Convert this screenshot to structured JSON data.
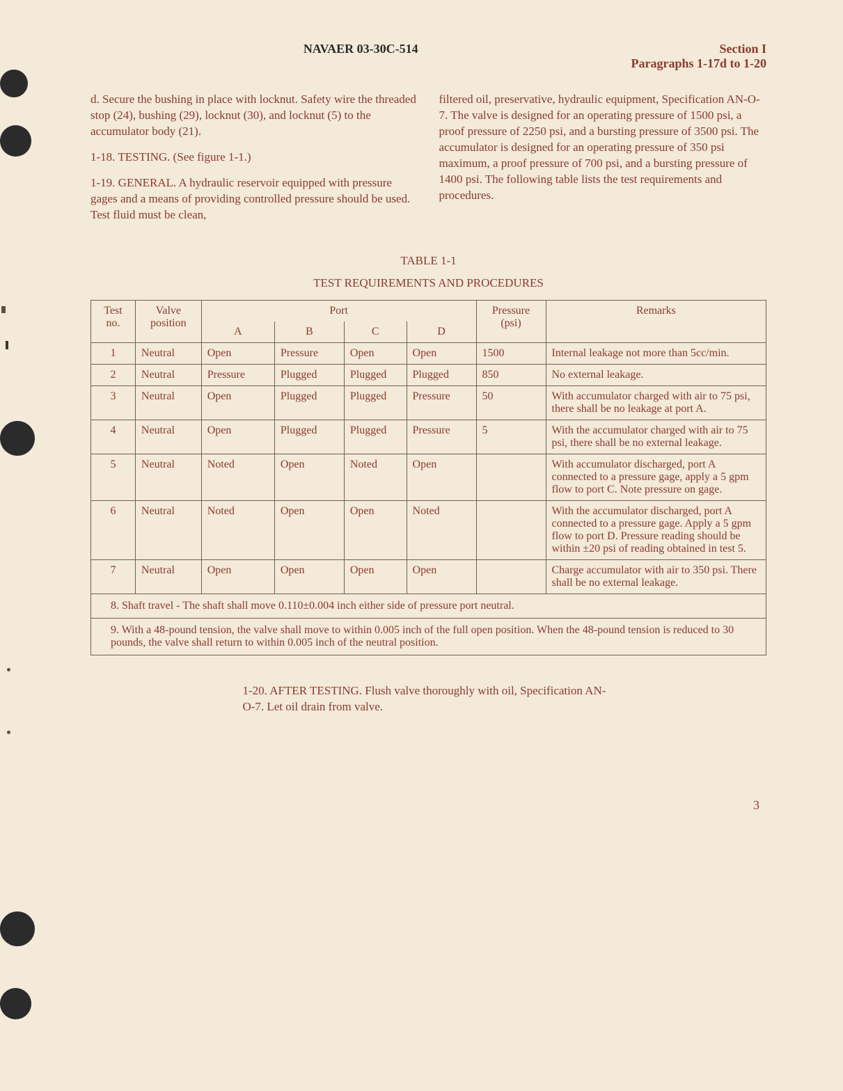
{
  "header": {
    "center": "NAVAER 03-30C-514",
    "right_line1": "Section I",
    "right_line2": "Paragraphs 1-17d to 1-20"
  },
  "col_left": {
    "p1": "d. Secure the bushing in place with locknut. Safety wire the threaded stop (24), bushing (29), locknut (30), and locknut (5) to the accumulator body (21).",
    "p2": "1-18. TESTING. (See figure 1-1.)",
    "p3": "1-19. GENERAL. A hydraulic reservoir equipped with pressure gages and a means of providing controlled pressure should be used. Test fluid must be clean,"
  },
  "col_right": {
    "p1": "filtered oil, preservative, hydraulic equipment, Specification AN-O-7. The valve is designed for an operating pressure of 1500 psi, a proof pressure of 2250 psi, and a bursting pressure of 3500 psi. The accumulator is designed for an operating pressure of 350 psi maximum, a proof pressure of 700 psi, and a bursting pressure of 1400 psi. The following table lists the test requirements and procedures."
  },
  "table": {
    "title": "TABLE 1-1",
    "subtitle": "TEST REQUIREMENTS AND PROCEDURES",
    "head": {
      "test_no": "Test no.",
      "valve": "Valve position",
      "port": "Port",
      "A": "A",
      "B": "B",
      "C": "C",
      "D": "D",
      "pressure": "Pressure (psi)",
      "remarks": "Remarks"
    },
    "rows": [
      {
        "no": "1",
        "valve": "Neutral",
        "A": "Open",
        "B": "Pressure",
        "C": "Open",
        "D": "Open",
        "psi": "1500",
        "remarks": "Internal leakage not more than 5cc/min."
      },
      {
        "no": "2",
        "valve": "Neutral",
        "A": "Pressure",
        "B": "Plugged",
        "C": "Plugged",
        "D": "Plugged",
        "psi": "850",
        "remarks": "No external leakage."
      },
      {
        "no": "3",
        "valve": "Neutral",
        "A": "Open",
        "B": "Plugged",
        "C": "Plugged",
        "D": "Pressure",
        "psi": "50",
        "remarks": "With accumulator charged with air to 75 psi, there shall be no leakage at port A."
      },
      {
        "no": "4",
        "valve": "Neutral",
        "A": "Open",
        "B": "Plugged",
        "C": "Plugged",
        "D": "Pressure",
        "psi": "5",
        "remarks": "With the accumulator charged with air to 75 psi, there shall be no external leakage."
      },
      {
        "no": "5",
        "valve": "Neutral",
        "A": "Noted",
        "B": "Open",
        "C": "Noted",
        "D": "Open",
        "psi": "",
        "remarks": "With accumulator discharged, port A connected to a pressure gage, apply a 5 gpm flow to port C. Note pressure on gage."
      },
      {
        "no": "6",
        "valve": "Neutral",
        "A": "Noted",
        "B": "Open",
        "C": "Open",
        "D": "Noted",
        "psi": "",
        "remarks": "With the accumulator discharged, port A connected to a pressure gage. Apply a 5 gpm flow to port D. Pressure reading should be within ±20 psi of reading obtained in test 5."
      },
      {
        "no": "7",
        "valve": "Neutral",
        "A": "Open",
        "B": "Open",
        "C": "Open",
        "D": "Open",
        "psi": "",
        "remarks": "Charge accumulator with air to 350 psi. There shall be no external leakage."
      }
    ],
    "note8": "8. Shaft travel - The shaft shall move 0.110±0.004 inch either side of pressure port neutral.",
    "note9": "9. With a 48-pound tension, the valve shall move to within 0.005 inch of the full open position. When the 48-pound tension is reduced to 30 pounds, the valve shall return to within 0.005 inch of the neutral position."
  },
  "after": "1-20. AFTER TESTING. Flush valve thoroughly with oil, Specification AN-O-7. Let oil drain from valve.",
  "page_num": "3",
  "style": {
    "background": "#f3ead9",
    "text_color": "#8b3a2e",
    "border_color": "#6b6257",
    "body_font_size": 17,
    "table_font_size": 16
  }
}
